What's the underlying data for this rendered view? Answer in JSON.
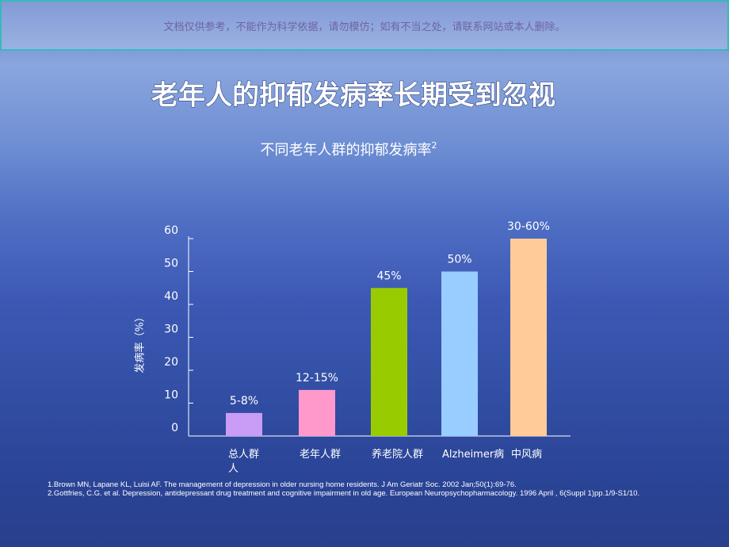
{
  "header": {
    "notice": "文档仅供参考，不能作为科学依据，请勿模仿；如有不当之处，请联系网站或本人删除。"
  },
  "chart_data": {
    "type": "bar",
    "title": "老年人的抑郁发病率长期受到忽视",
    "subtitle": "不同老年人群的抑郁发病率",
    "subtitle_note": "2",
    "y_label": "发病率（%）",
    "categories": [
      "总人群人",
      "老年人群",
      "养老院人群",
      "Alzheimer病",
      "中风病"
    ],
    "values": [
      7,
      14,
      45,
      50,
      60
    ],
    "value_labels": [
      "5-8%",
      "12-15%",
      "45%",
      "50%",
      "30-60%"
    ],
    "colors": [
      "#c99cf5",
      "#ff99cc",
      "#99cc00",
      "#99ccff",
      "#ffcc99"
    ],
    "ylim": [
      0,
      60
    ],
    "yticks": [
      0,
      10,
      20,
      30,
      40,
      50,
      60
    ]
  },
  "references": [
    "1.Brown MN, Lapane KL, Luisi AF. The management of depression in older nursing home residents. J Am Geriatr Soc. 2002 Jan;50(1):69-76.",
    "2.Gottfries, C.G. et al. Depression, antidepressant drug treatment and cognitive impairment in old age. European Neuropsychopharmacology. 1996 April , 6(Suppl 1)pp.1/9-S1/10."
  ]
}
